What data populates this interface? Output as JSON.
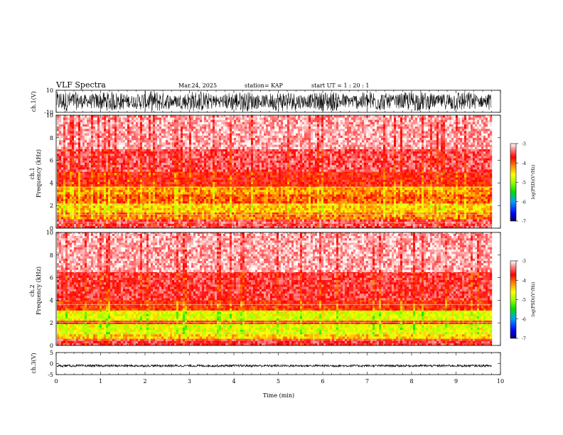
{
  "header": {
    "title": "VLF Spectra",
    "date": "Mar.24, 2025",
    "station": "station= KAP",
    "start": "start  UT =   1 : 20 : 1"
  },
  "colors": {
    "waveform": "#000000",
    "colormap": [
      "#000060",
      "#0000ff",
      "#00a0ff",
      "#00e000",
      "#a0ff00",
      "#ffff00",
      "#ff8000",
      "#ff0000",
      "#ff8080",
      "#ffffff"
    ]
  },
  "colorbar": {
    "label": "log(PSD)(V²/Hz)",
    "ticks": [
      "-3",
      "-4",
      "-5",
      "-6",
      "-7"
    ]
  },
  "chart_data": [
    {
      "type": "line",
      "name": "ch1-waveform",
      "ylabel": "ch.1(V)",
      "yticks": [
        "10",
        "-10"
      ],
      "ylim": [
        -10,
        10
      ],
      "xlim": [
        0,
        10
      ],
      "data_extent_min": 9.8,
      "description_values": {
        "mean": 0,
        "amplitude_range": [
          -10,
          10
        ]
      }
    },
    {
      "type": "heatmap",
      "name": "ch1-spectrogram",
      "ylabel": "ch.1\nFrequency  (kHz)",
      "ylabel_lines": [
        "ch.1",
        "Frequency  (kHz)"
      ],
      "yticks": [
        "0",
        "2",
        "4",
        "6",
        "8",
        "10"
      ],
      "ylim": [
        0,
        10
      ],
      "xlim": [
        0,
        10
      ],
      "zlim": [
        -7,
        -3
      ],
      "data_extent_min": 9.8,
      "bands": [
        {
          "f_low": 0.0,
          "f_high": 0.8,
          "log_psd": -3.6
        },
        {
          "f_low": 0.8,
          "f_high": 1.4,
          "log_psd": -4.3
        },
        {
          "f_low": 1.4,
          "f_high": 2.2,
          "log_psd": -4.6
        },
        {
          "f_low": 2.2,
          "f_high": 3.0,
          "log_psd": -4.2
        },
        {
          "f_low": 3.0,
          "f_high": 3.7,
          "log_psd": -4.4
        },
        {
          "f_low": 3.7,
          "f_high": 5.0,
          "log_psd": -3.9
        },
        {
          "f_low": 5.0,
          "f_high": 7.0,
          "log_psd": -3.6
        },
        {
          "f_low": 7.0,
          "f_high": 10.0,
          "log_psd": -3.3
        }
      ]
    },
    {
      "type": "heatmap",
      "name": "ch2-spectrogram",
      "ylabel": "ch.2\nFrequency  (kHz)",
      "ylabel_lines": [
        "ch.2",
        "Frequency  (kHz)"
      ],
      "yticks": [
        "0",
        "2",
        "4",
        "6",
        "8",
        "10"
      ],
      "ylim": [
        0,
        10
      ],
      "xlim": [
        0,
        10
      ],
      "zlim": [
        -7,
        -3
      ],
      "data_extent_min": 9.8,
      "bands": [
        {
          "f_low": 0.0,
          "f_high": 0.6,
          "log_psd": -3.7
        },
        {
          "f_low": 0.6,
          "f_high": 1.0,
          "log_psd": -4.6
        },
        {
          "f_low": 1.0,
          "f_high": 1.9,
          "log_psd": -4.9
        },
        {
          "f_low": 1.9,
          "f_high": 2.2,
          "log_psd": -4.0
        },
        {
          "f_low": 2.2,
          "f_high": 3.1,
          "log_psd": -4.9
        },
        {
          "f_low": 3.1,
          "f_high": 4.0,
          "log_psd": -4.0
        },
        {
          "f_low": 4.0,
          "f_high": 6.5,
          "log_psd": -3.7
        },
        {
          "f_low": 6.5,
          "f_high": 10.0,
          "log_psd": -3.3
        }
      ]
    },
    {
      "type": "line",
      "name": "ch3-waveform",
      "ylabel": "ch.3(V)",
      "yticks": [
        "5",
        "0",
        "-5"
      ],
      "ylim": [
        -5,
        5
      ],
      "xlim": [
        0,
        10
      ],
      "data_extent_min": 9.8,
      "description_values": {
        "mean": -1,
        "amplitude_range": [
          -1.5,
          -0.5
        ]
      }
    }
  ],
  "xaxis": {
    "label": "Time  (min)",
    "ticks": [
      "0",
      "1",
      "2",
      "3",
      "4",
      "5",
      "6",
      "7",
      "8",
      "9",
      "10"
    ]
  }
}
